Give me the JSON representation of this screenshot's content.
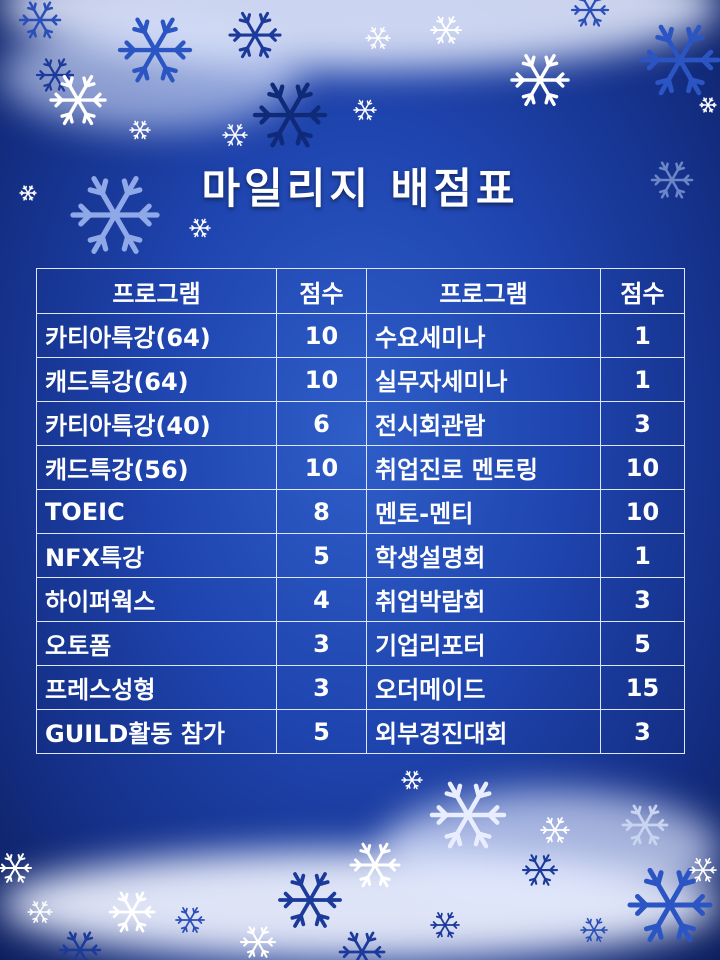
{
  "title": "마일리지 배점표",
  "table": {
    "headers": [
      "프로그램",
      "점수",
      "프로그램",
      "점수"
    ],
    "rows": [
      {
        "program_left": "카티아특강(64)",
        "score_left": "10",
        "program_right": "수요세미나",
        "score_right": "1"
      },
      {
        "program_left": "캐드특강(64)",
        "score_left": "10",
        "program_right": "실무자세미나",
        "score_right": "1"
      },
      {
        "program_left": "카티아특강(40)",
        "score_left": "6",
        "program_right": "전시회관람",
        "score_right": "3"
      },
      {
        "program_left": "캐드특강(56)",
        "score_left": "10",
        "program_right": "취업진로 멘토링",
        "score_right": "10"
      },
      {
        "program_left": "TOEIC",
        "score_left": "8",
        "program_right": "멘토-멘티",
        "score_right": "10"
      },
      {
        "program_left": "NFX특강",
        "score_left": "5",
        "program_right": "학생설명회",
        "score_right": "1"
      },
      {
        "program_left": "하이퍼웍스",
        "score_left": "4",
        "program_right": "취업박람회",
        "score_right": "3"
      },
      {
        "program_left": "오토폼",
        "score_left": "3",
        "program_right": "기업리포터",
        "score_right": "5"
      },
      {
        "program_left": "프레스성형",
        "score_left": "3",
        "program_right": "오더메이드",
        "score_right": "15"
      },
      {
        "program_left": "GUILD활동 참가",
        "score_left": "5",
        "program_right": "외부경진대회",
        "score_right": "3"
      }
    ]
  },
  "colors": {
    "background": "#1f45b0",
    "text": "#ffffff",
    "grid": "#dde6ff"
  },
  "decoration_icon": "snowflake-icon"
}
